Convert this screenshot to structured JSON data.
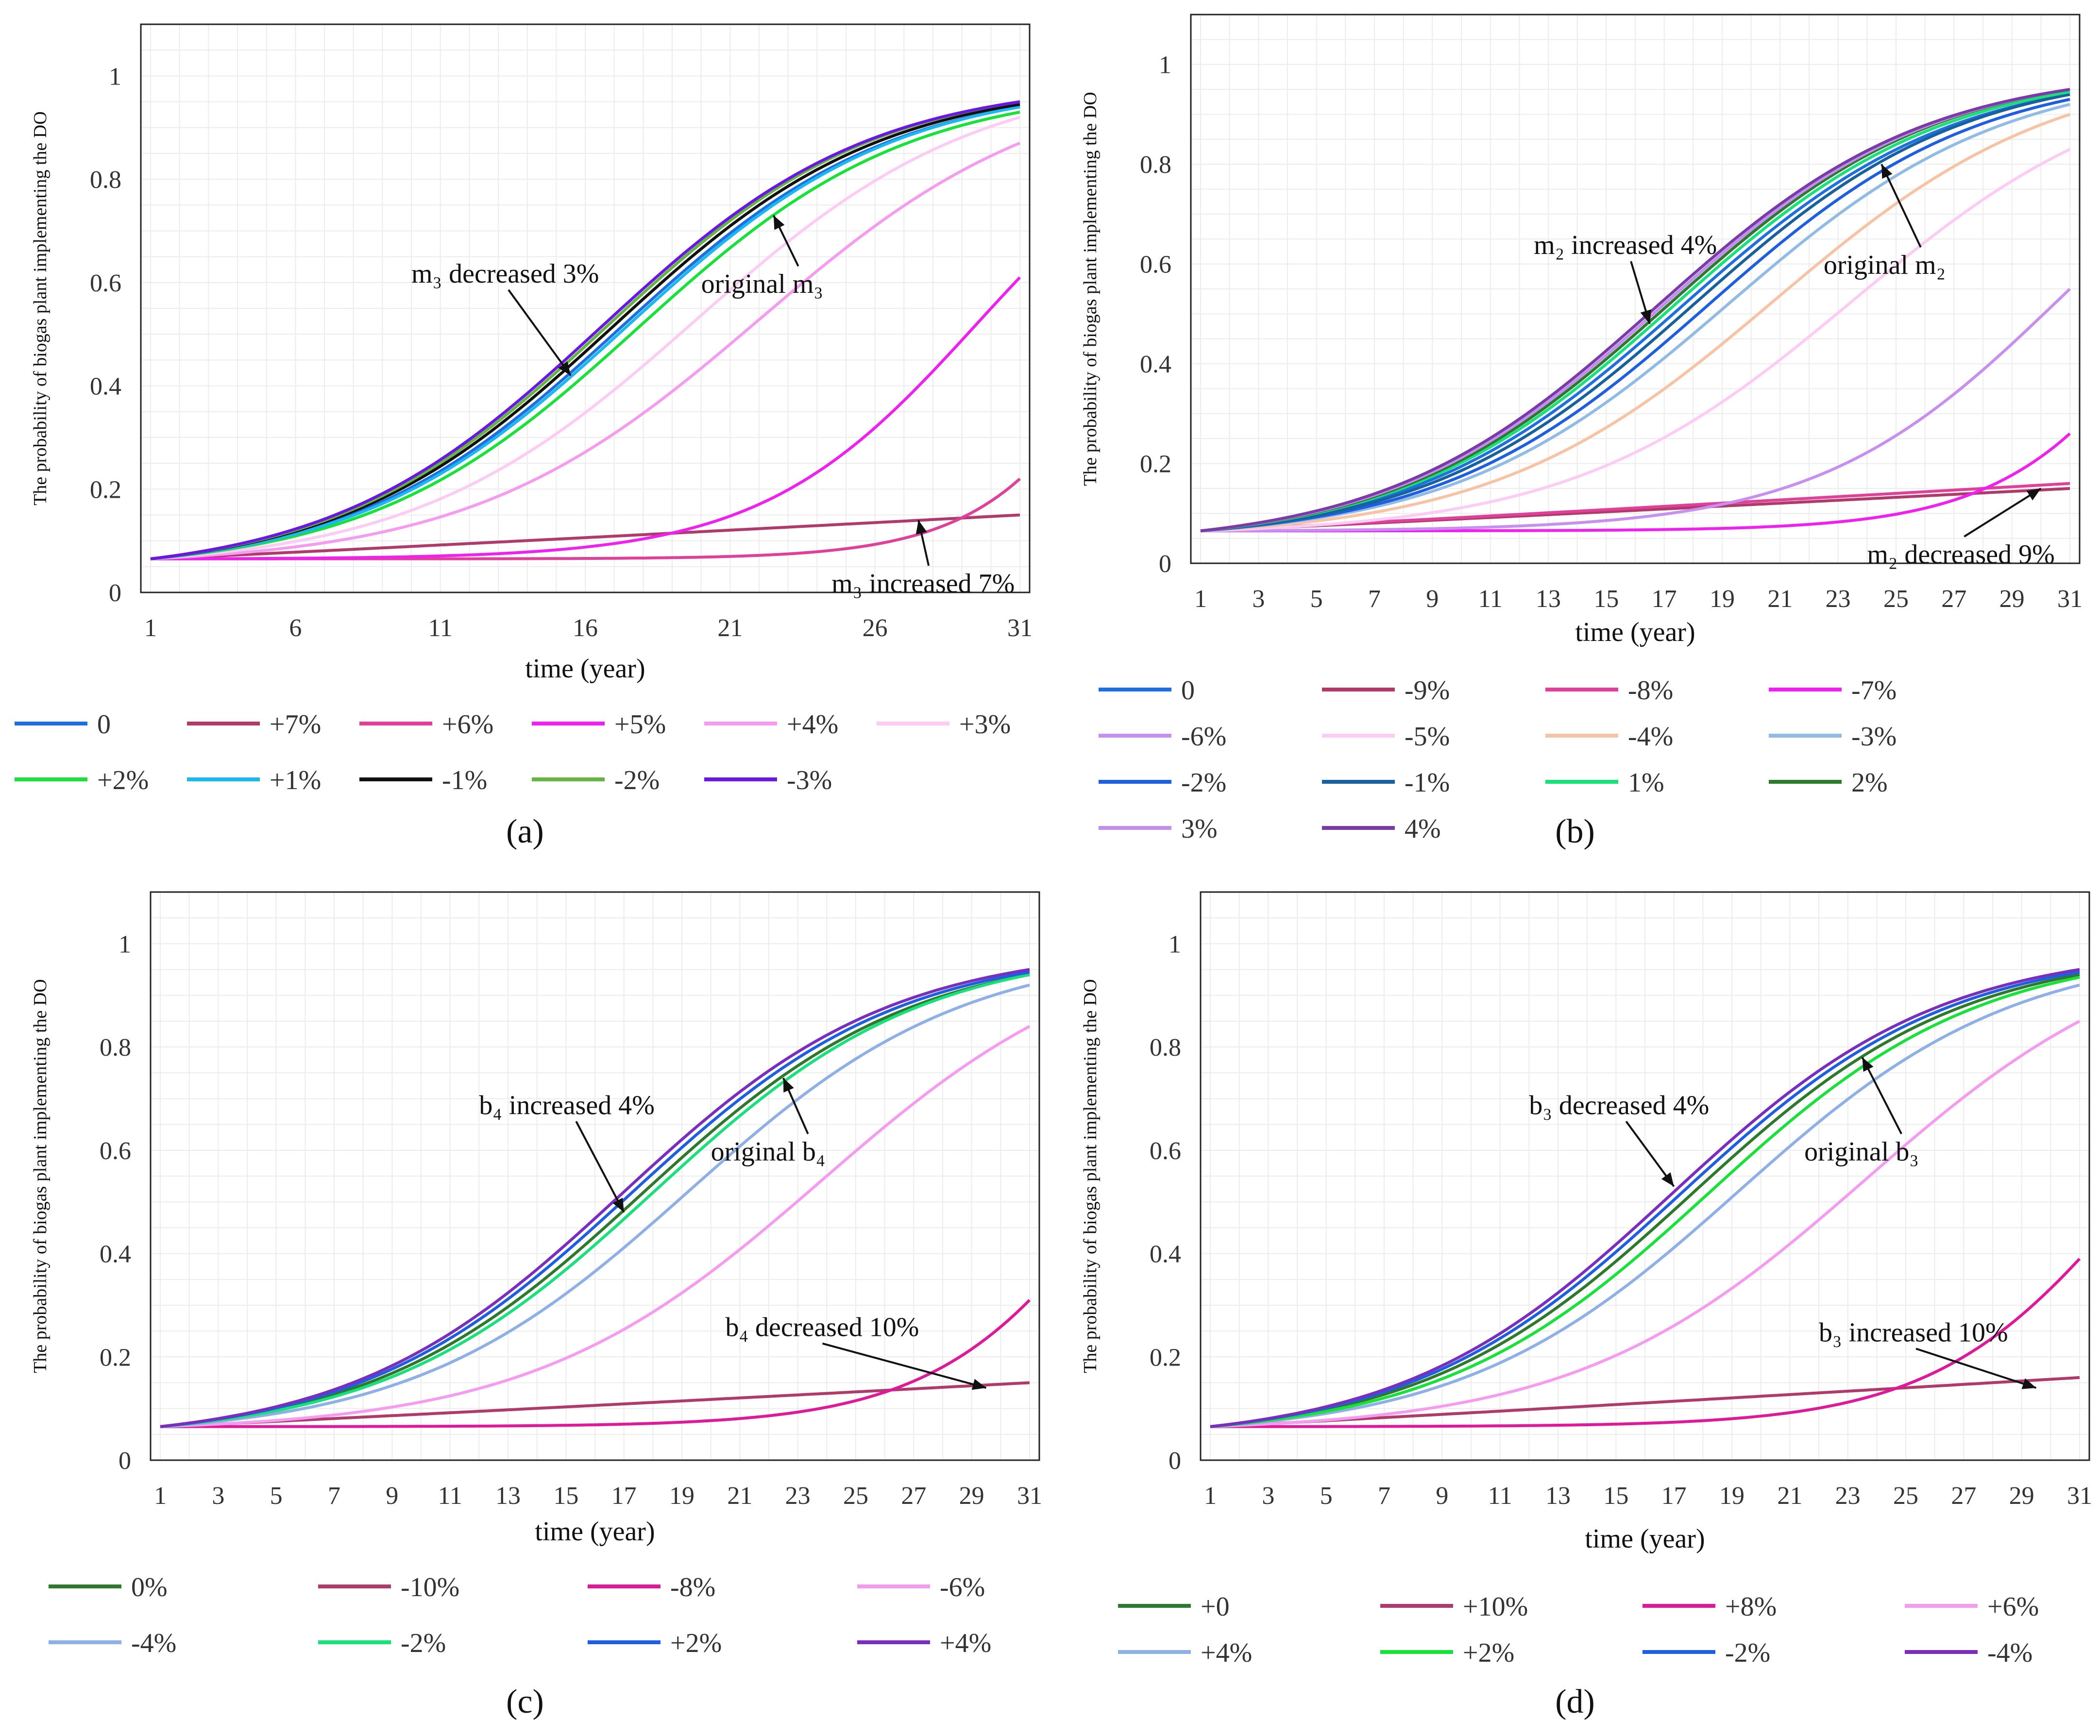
{
  "figure_labels": [
    "(a)",
    "(b)",
    "(c)",
    "(d)"
  ],
  "chart_data": [
    {
      "type": "line",
      "panel": "(a)",
      "ylabel": "The probability of biogas plant implementing the DO",
      "xlabel": "time (year)",
      "xlim": [
        1,
        31
      ],
      "ylim": [
        0,
        1.1
      ],
      "xticks": [
        1,
        6,
        11,
        16,
        21,
        26,
        31
      ],
      "yticks": [
        0,
        0.2,
        0.4,
        0.6,
        0.8,
        1
      ],
      "ytick_labels": [
        "0",
        "0.2",
        "0.4",
        "0.6",
        "0.8",
        "1"
      ],
      "series": [
        {
          "name": "0",
          "color": "#1f6fe0",
          "t0": 17.2,
          "k": 0.215,
          "end": 0.94
        },
        {
          "name": "+7%",
          "color": "#b03a6a",
          "t0": 0,
          "k": 0,
          "end": 0.15,
          "linear": true
        },
        {
          "name": "+6%",
          "color": "#e0409a",
          "t0": 37.0,
          "k": 0.36,
          "end": 0.22
        },
        {
          "name": "+5%",
          "color": "#f020f0",
          "t0": 29.5,
          "k": 0.27,
          "end": 0.61
        },
        {
          "name": "+4%",
          "color": "#f59cf0",
          "t0": 22.0,
          "k": 0.2,
          "end": 0.87
        },
        {
          "name": "+3%",
          "color": "#fcccf5",
          "t0": 19.8,
          "k": 0.205,
          "end": 0.92
        },
        {
          "name": "+2%",
          "color": "#16e23a",
          "t0": 17.8,
          "k": 0.215,
          "end": 0.93
        },
        {
          "name": "+1%",
          "color": "#1ab8f0",
          "t0": 17.4,
          "k": 0.215,
          "end": 0.94
        },
        {
          "name": "-1%",
          "color": "#111111",
          "t0": 16.9,
          "k": 0.215,
          "end": 0.945
        },
        {
          "name": "-2%",
          "color": "#63b540",
          "t0": 16.7,
          "k": 0.215,
          "end": 0.95
        },
        {
          "name": "-3%",
          "color": "#6a16e6",
          "t0": 16.5,
          "k": 0.215,
          "end": 0.95
        }
      ],
      "annotations": [
        {
          "text": "m₃ decreased 3%",
          "xy": [
            15.5,
            0.42
          ],
          "text_pos": [
            10,
            0.6
          ]
        },
        {
          "text": "original m₃",
          "xy": [
            22.5,
            0.73
          ],
          "text_pos": [
            20,
            0.58
          ]
        },
        {
          "text": "m₃ increased 7%",
          "xy": [
            27.5,
            0.14
          ],
          "text_pos": [
            24.5,
            0.0
          ]
        }
      ],
      "legend_items": [
        "0",
        "+7%",
        "+6%",
        "+5%",
        "+4%",
        "+3%",
        "+2%",
        "+1%",
        "-1%",
        "-2%",
        "-3%"
      ]
    },
    {
      "type": "line",
      "panel": "(b)",
      "ylabel": "The probability of biogas plant implementing the DO",
      "xlabel": "time (year)",
      "xlim": [
        1,
        31
      ],
      "ylim": [
        0,
        1.1
      ],
      "xticks": [
        1,
        3,
        5,
        7,
        9,
        11,
        13,
        15,
        17,
        19,
        21,
        23,
        25,
        27,
        29,
        31
      ],
      "yticks": [
        0,
        0.2,
        0.4,
        0.6,
        0.8,
        1
      ],
      "ytick_labels": [
        "0",
        "0.2",
        "0.4",
        "0.6",
        "0.8",
        "1"
      ],
      "series": [
        {
          "name": "0",
          "color": "#1f6fe0",
          "t0": 17.6,
          "k": 0.215,
          "end": 0.94
        },
        {
          "name": "-9%",
          "color": "#b03a6a",
          "t0": 0,
          "k": 0,
          "end": 0.15,
          "linear": true
        },
        {
          "name": "-8%",
          "color": "#e0409a",
          "t0": 0,
          "k": 0,
          "end": 0.16,
          "linear": true
        },
        {
          "name": "-7%",
          "color": "#f020f0",
          "t0": 36.0,
          "k": 0.32,
          "end": 0.26
        },
        {
          "name": "-6%",
          "color": "#c78ff0",
          "t0": 30.6,
          "k": 0.24,
          "end": 0.55
        },
        {
          "name": "-5%",
          "color": "#fcccf5",
          "t0": 23.5,
          "k": 0.205,
          "end": 0.83
        },
        {
          "name": "-4%",
          "color": "#f7c3a4",
          "t0": 20.8,
          "k": 0.205,
          "end": 0.9
        },
        {
          "name": "-3%",
          "color": "#8fbbe6",
          "t0": 19.2,
          "k": 0.21,
          "end": 0.92
        },
        {
          "name": "-2%",
          "color": "#1d5fe0",
          "t0": 18.5,
          "k": 0.215,
          "end": 0.93
        },
        {
          "name": "-1%",
          "color": "#16619e",
          "t0": 18.0,
          "k": 0.215,
          "end": 0.94
        },
        {
          "name": "1%",
          "color": "#18e07a",
          "t0": 17.3,
          "k": 0.215,
          "end": 0.945
        },
        {
          "name": "2%",
          "color": "#2d7a2d",
          "t0": 17.1,
          "k": 0.215,
          "end": 0.95
        },
        {
          "name": "3%",
          "color": "#c28ff0",
          "t0": 16.9,
          "k": 0.215,
          "end": 0.95
        },
        {
          "name": "4%",
          "color": "#7a3aa8",
          "t0": 16.7,
          "k": 0.215,
          "end": 0.95
        }
      ],
      "annotations": [
        {
          "text": "m₂ increased 4%",
          "xy": [
            16.5,
            0.48
          ],
          "text_pos": [
            12.5,
            0.62
          ]
        },
        {
          "text": "original m₂",
          "xy": [
            24.5,
            0.8
          ],
          "text_pos": [
            22.5,
            0.58
          ]
        },
        {
          "text": "m₂ decreased 9%",
          "xy": [
            30,
            0.15
          ],
          "text_pos": [
            24,
            0.0
          ]
        }
      ],
      "legend_items": [
        "0",
        "-9%",
        "-8%",
        "-7%",
        "-6%",
        "-5%",
        "-4%",
        "-3%",
        "-2%",
        "-1%",
        "1%",
        "2%",
        "3%",
        "4%"
      ]
    },
    {
      "type": "line",
      "panel": "(c)",
      "ylabel": "The probability of biogas plant implementing the DO",
      "xlabel": "time (year)",
      "xlim": [
        1,
        31
      ],
      "ylim": [
        0,
        1.1
      ],
      "xticks": [
        1,
        3,
        5,
        7,
        9,
        11,
        13,
        15,
        17,
        19,
        21,
        23,
        25,
        27,
        29,
        31
      ],
      "yticks": [
        0,
        0.2,
        0.4,
        0.6,
        0.8,
        1
      ],
      "ytick_labels": [
        "0",
        "0.2",
        "0.4",
        "0.6",
        "0.8",
        "1"
      ],
      "series": [
        {
          "name": "0%",
          "color": "#2d7a2d",
          "t0": 17.6,
          "k": 0.215,
          "end": 0.94
        },
        {
          "name": "-10%",
          "color": "#b03a6a",
          "t0": 0,
          "k": 0,
          "end": 0.15,
          "linear": true
        },
        {
          "name": "-8%",
          "color": "#e0189a",
          "t0": 35.0,
          "k": 0.3,
          "end": 0.31
        },
        {
          "name": "-6%",
          "color": "#f59cf0",
          "t0": 23.8,
          "k": 0.2,
          "end": 0.84
        },
        {
          "name": "-4%",
          "color": "#8fb0e6",
          "t0": 19.2,
          "k": 0.21,
          "end": 0.92
        },
        {
          "name": "-2%",
          "color": "#18e07a",
          "t0": 18.0,
          "k": 0.215,
          "end": 0.94
        },
        {
          "name": "+2%",
          "color": "#1d5fe0",
          "t0": 17.2,
          "k": 0.215,
          "end": 0.945
        },
        {
          "name": "+4%",
          "color": "#7a2ec0",
          "t0": 16.9,
          "k": 0.215,
          "end": 0.95
        }
      ],
      "annotations": [
        {
          "text": "b₄ increased 4%",
          "xy": [
            17,
            0.48
          ],
          "text_pos": [
            12,
            0.67
          ]
        },
        {
          "text": "original b₄",
          "xy": [
            22.5,
            0.74
          ],
          "text_pos": [
            20,
            0.58
          ]
        },
        {
          "text": "b₄ decreased 10%",
          "xy": [
            29.5,
            0.14
          ],
          "text_pos": [
            20.5,
            0.24
          ]
        }
      ],
      "legend_items": [
        "0%",
        "-10%",
        "-8%",
        "-6%",
        "-4%",
        "-2%",
        "+2%",
        "+4%"
      ]
    },
    {
      "type": "line",
      "panel": "(d)",
      "ylabel": "The probability of biogas plant implementing the DO",
      "xlabel": "time (year)",
      "xlim": [
        1,
        31
      ],
      "ylim": [
        0,
        1.1
      ],
      "xticks": [
        1,
        3,
        5,
        7,
        9,
        11,
        13,
        15,
        17,
        19,
        21,
        23,
        25,
        27,
        29,
        31
      ],
      "yticks": [
        0,
        0.2,
        0.4,
        0.6,
        0.8,
        1
      ],
      "ytick_labels": [
        "0",
        "0.2",
        "0.4",
        "0.6",
        "0.8",
        "1"
      ],
      "series": [
        {
          "name": "+0",
          "color": "#2d7a2d",
          "t0": 17.6,
          "k": 0.215,
          "end": 0.94
        },
        {
          "name": "+10%",
          "color": "#b03a6a",
          "t0": 0,
          "k": 0,
          "end": 0.16,
          "linear": true
        },
        {
          "name": "+8%",
          "color": "#e0189a",
          "t0": 33.0,
          "k": 0.29,
          "end": 0.39
        },
        {
          "name": "+6%",
          "color": "#f59cf0",
          "t0": 23.6,
          "k": 0.2,
          "end": 0.85
        },
        {
          "name": "+4%",
          "color": "#8fb0e6",
          "t0": 19.2,
          "k": 0.21,
          "end": 0.92
        },
        {
          "name": "+2%",
          "color": "#16e23a",
          "t0": 18.2,
          "k": 0.215,
          "end": 0.935
        },
        {
          "name": "-2%",
          "color": "#1d5fe0",
          "t0": 17.2,
          "k": 0.215,
          "end": 0.945
        },
        {
          "name": "-4%",
          "color": "#7a2ec0",
          "t0": 16.9,
          "k": 0.215,
          "end": 0.95
        }
      ],
      "annotations": [
        {
          "text": "b₃ decreased 4%",
          "xy": [
            17,
            0.53
          ],
          "text_pos": [
            12,
            0.67
          ]
        },
        {
          "text": "original b₃",
          "xy": [
            23.5,
            0.78
          ],
          "text_pos": [
            21.5,
            0.58
          ]
        },
        {
          "text": "b₃ increased 10%",
          "xy": [
            29.5,
            0.14
          ],
          "text_pos": [
            22,
            0.23
          ]
        }
      ],
      "legend_items": [
        "+0",
        "+10%",
        "+8%",
        "+6%",
        "+4%",
        "+2%",
        "-2%",
        "-4%"
      ]
    }
  ]
}
